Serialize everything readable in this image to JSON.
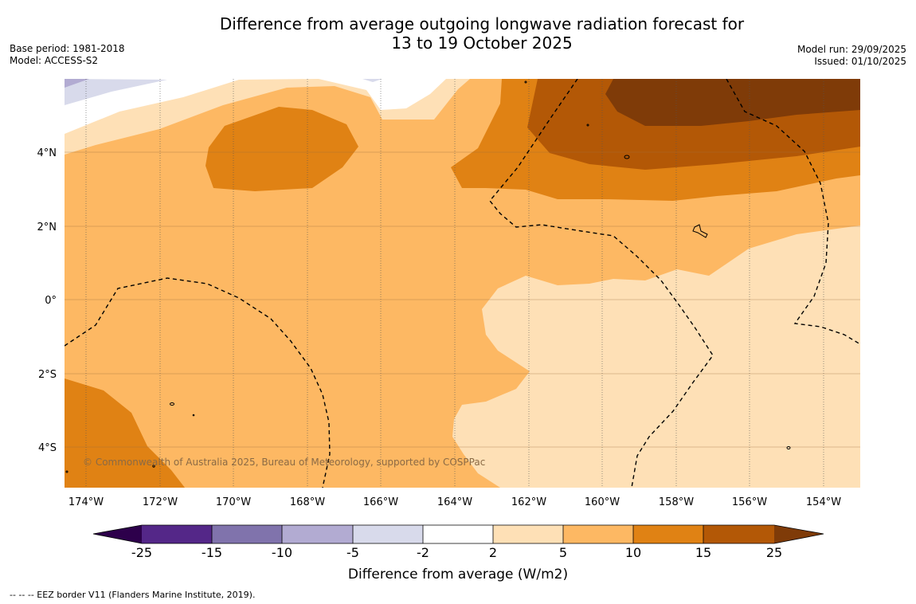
{
  "title_line1": "Difference from average outgoing longwave radiation forecast for",
  "title_line2": "13 to 19 October 2025",
  "base_period": "Base period: 1981-2018",
  "model": "Model: ACCESS-S2",
  "model_run": "Model run: 29/09/2025",
  "issued": "Issued: 01/10/2025",
  "copyright": "© Commonwealth of Australia 2025, Bureau of Meteorology, supported by COSPPac",
  "footer": "--  --  -- EEZ border V11 (Flanders Marine Institute, 2019).",
  "map": {
    "lon_labels": [
      "174°W",
      "172°W",
      "170°W",
      "168°W",
      "166°W",
      "164°W",
      "162°W",
      "160°W",
      "158°W",
      "156°W",
      "154°W"
    ],
    "lat_labels": [
      "4°N",
      "2°N",
      "0°",
      "2°S",
      "4°S"
    ]
  },
  "colorbar": {
    "title": "Difference from average (W/m2)",
    "ticks": [
      "-25",
      "-15",
      "-10",
      "-5",
      "-2",
      "2",
      "5",
      "10",
      "15",
      "25"
    ],
    "colors": {
      "extend_low": "#2d004b",
      "c1": "#542788",
      "c2": "#8073ac",
      "c3": "#b2abd2",
      "c4": "#d8daeb",
      "c5": "#ffffff",
      "c6": "#fee0b6",
      "c7": "#fdb863",
      "c8": "#e08214",
      "c9": "#b35806",
      "extend_high": "#7f3b08"
    }
  }
}
